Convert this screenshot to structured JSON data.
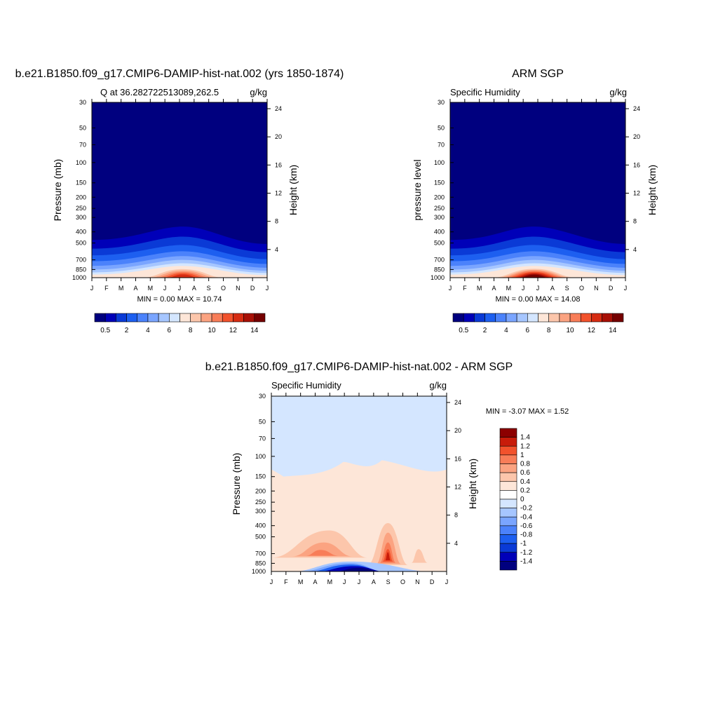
{
  "figure": {
    "panel1": {
      "title": "b.e21.B1850.f09_g17.CMIP6-DAMIP-hist-nat.002 (yrs 1850-1874)",
      "left_label": "Q at 36.282722513089,262.5",
      "right_label": "g/kg",
      "ylabel": "Pressure (mb)",
      "ylabel_right": "Height (km)",
      "minmax": "MIN =   0.00 MAX =  10.74"
    },
    "panel2": {
      "title": "ARM SGP",
      "left_label": "Specific Humidity",
      "right_label": "g/kg",
      "ylabel": "pressure level",
      "ylabel_right": "Height (km)",
      "minmax": "MIN =   0.00 MAX =  14.08"
    },
    "panel3": {
      "title": "b.e21.B1850.f09_g17.CMIP6-DAMIP-hist-nat.002 - ARM SGP",
      "left_label": "Specific Humidity",
      "right_label": "g/kg",
      "ylabel": "Pressure (mb)",
      "ylabel_right": "Height (km)",
      "minmax": "MIN =  -3.07 MAX =   1.52"
    }
  },
  "chart_data": [
    {
      "type": "heatmap",
      "title": "b.e21.B1850.f09_g17.CMIP6-DAMIP-hist-nat.002 (yrs 1850-1874)",
      "subtitle": "Q at 36.282722513089,262.5",
      "units": "g/kg",
      "x_tick_labels": [
        "J",
        "F",
        "M",
        "A",
        "M",
        "J",
        "J",
        "A",
        "S",
        "O",
        "N",
        "D",
        "J"
      ],
      "y_ticks": [
        30,
        50,
        70,
        100,
        150,
        200,
        250,
        300,
        400,
        500,
        700,
        850,
        1000
      ],
      "y_ticks_right": [
        24,
        20,
        16,
        12,
        8,
        4
      ],
      "ylabel": "Pressure (mb)",
      "ylabel_right": "Height (km)",
      "levels": [
        0.5,
        1,
        2,
        3,
        4,
        5,
        6,
        7,
        8,
        9,
        10,
        11,
        12,
        13,
        14
      ],
      "colorbar_labels": [
        "0.5",
        "2",
        "4",
        "6",
        "8",
        "10",
        "12",
        "14"
      ],
      "min": 0.0,
      "max": 10.74,
      "colors": [
        "#00007f",
        "#0000b8",
        "#0a3ad6",
        "#1d5ff0",
        "#4b82fb",
        "#7aa5ff",
        "#a6c6ff",
        "#d4e6ff",
        "#fde6d8",
        "#fcc6ab",
        "#fba381",
        "#f87d58",
        "#f2522c",
        "#d62c12",
        "#a81006",
        "#750000"
      ]
    },
    {
      "type": "heatmap",
      "title": "ARM SGP",
      "subtitle": "Specific Humidity",
      "units": "g/kg",
      "x_tick_labels": [
        "J",
        "F",
        "M",
        "A",
        "M",
        "J",
        "J",
        "A",
        "S",
        "O",
        "N",
        "D",
        "J"
      ],
      "y_ticks": [
        30,
        50,
        70,
        100,
        150,
        200,
        250,
        300,
        400,
        500,
        700,
        850,
        1000
      ],
      "y_ticks_right": [
        24,
        20,
        16,
        12,
        8,
        4
      ],
      "ylabel": "pressure level",
      "ylabel_right": "Height (km)",
      "levels": [
        0.5,
        1,
        2,
        3,
        4,
        5,
        6,
        7,
        8,
        9,
        10,
        11,
        12,
        13,
        14
      ],
      "colorbar_labels": [
        "0.5",
        "2",
        "4",
        "6",
        "8",
        "10",
        "12",
        "14"
      ],
      "min": 0.0,
      "max": 14.08,
      "colors": [
        "#00007f",
        "#0000b8",
        "#0a3ad6",
        "#1d5ff0",
        "#4b82fb",
        "#7aa5ff",
        "#a6c6ff",
        "#d4e6ff",
        "#fde6d8",
        "#fcc6ab",
        "#fba381",
        "#f87d58",
        "#f2522c",
        "#d62c12",
        "#a81006",
        "#750000"
      ]
    },
    {
      "type": "heatmap",
      "title": "b.e21.B1850.f09_g17.CMIP6-DAMIP-hist-nat.002 - ARM SGP",
      "subtitle": "Specific Humidity",
      "units": "g/kg",
      "x_tick_labels": [
        "J",
        "F",
        "M",
        "A",
        "M",
        "J",
        "J",
        "A",
        "S",
        "O",
        "N",
        "D",
        "J"
      ],
      "y_ticks": [
        30,
        50,
        70,
        100,
        150,
        200,
        250,
        300,
        400,
        500,
        700,
        850,
        1000
      ],
      "y_ticks_right": [
        24,
        20,
        16,
        12,
        8,
        4
      ],
      "ylabel": "Pressure (mb)",
      "ylabel_right": "Height (km)",
      "levels": [
        -1.4,
        -1.2,
        -1,
        -0.8,
        -0.6,
        -0.4,
        -0.2,
        0,
        0.2,
        0.4,
        0.6,
        0.8,
        1,
        1.2,
        1.4
      ],
      "colorbar_labels": [
        "1.4",
        "1.2",
        "1",
        "0.8",
        "0.6",
        "0.4",
        "0.2",
        "0",
        "-0.2",
        "-0.4",
        "-0.6",
        "-0.8",
        "-1",
        "-1.2",
        "-1.4"
      ],
      "min": -3.07,
      "max": 1.52,
      "colors": [
        "#00007f",
        "#0000b8",
        "#0a3ad6",
        "#1d5ff0",
        "#4b82fb",
        "#7aa5ff",
        "#a6c6ff",
        "#d4e6ff",
        "#ffffff",
        "#fde6d8",
        "#fcc6ab",
        "#fba381",
        "#f87d58",
        "#f2522c",
        "#c81c0a",
        "#8c0000"
      ]
    }
  ]
}
